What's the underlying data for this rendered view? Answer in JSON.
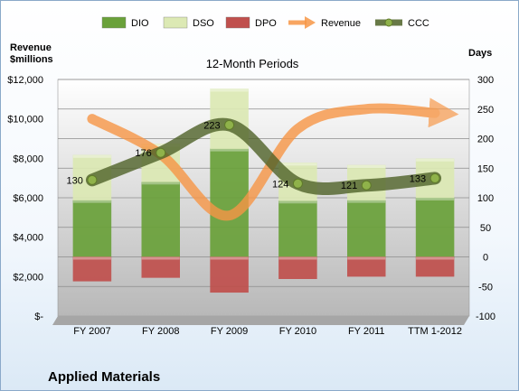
{
  "chart_data": {
    "type": "bar",
    "title": "12-Month Periods",
    "company": "Applied Materials",
    "left_axis_label_line1": "Revenue",
    "left_axis_label_line2": "$millions",
    "right_axis_label": "Days",
    "categories": [
      "FY 2007",
      "FY 2008",
      "FY 2009",
      "FY 2010",
      "FY 2011",
      "TTM 1-2012"
    ],
    "left_axis": {
      "range": [
        0,
        12000
      ],
      "ticks": [
        0,
        2000,
        4000,
        6000,
        8000,
        10000,
        12000
      ],
      "tick_labels": [
        "$-",
        "$2,000",
        "$4,000",
        "$6,000",
        "$8,000",
        "$10,000",
        "$12,000"
      ]
    },
    "right_axis": {
      "range": [
        -100,
        300
      ],
      "ticks": [
        -100,
        -50,
        0,
        50,
        100,
        150,
        200,
        250,
        300
      ],
      "tick_labels": [
        "-100",
        "-50",
        "0",
        "50",
        "100",
        "150",
        "200",
        "250",
        "300"
      ]
    },
    "series": [
      {
        "name": "DIO",
        "kind": "stacked-bar",
        "axis": "right",
        "color": "#6aa13a",
        "values": [
          96,
          127,
          183,
          95,
          96,
          100
        ]
      },
      {
        "name": "DSO",
        "kind": "stacked-bar",
        "axis": "right",
        "color": "#dce9b4",
        "values": [
          76,
          64,
          101,
          64,
          59,
          66
        ]
      },
      {
        "name": "DPO",
        "kind": "stacked-bar",
        "axis": "right",
        "color": "#c0504d",
        "values": [
          -41,
          -35,
          -60,
          -37,
          -33,
          -33
        ]
      },
      {
        "name": "Revenue",
        "kind": "line",
        "axis": "left",
        "color": "#f79646",
        "values": [
          10000,
          8200,
          5100,
          9500,
          10500,
          10300
        ]
      },
      {
        "name": "CCC",
        "kind": "line",
        "axis": "right",
        "color": "#4f6228",
        "values": [
          130,
          176,
          223,
          124,
          121,
          133
        ],
        "data_labels": [
          "130",
          "176",
          "223",
          "124",
          "121",
          "133"
        ]
      }
    ],
    "grid": true,
    "legend_position": "top"
  }
}
